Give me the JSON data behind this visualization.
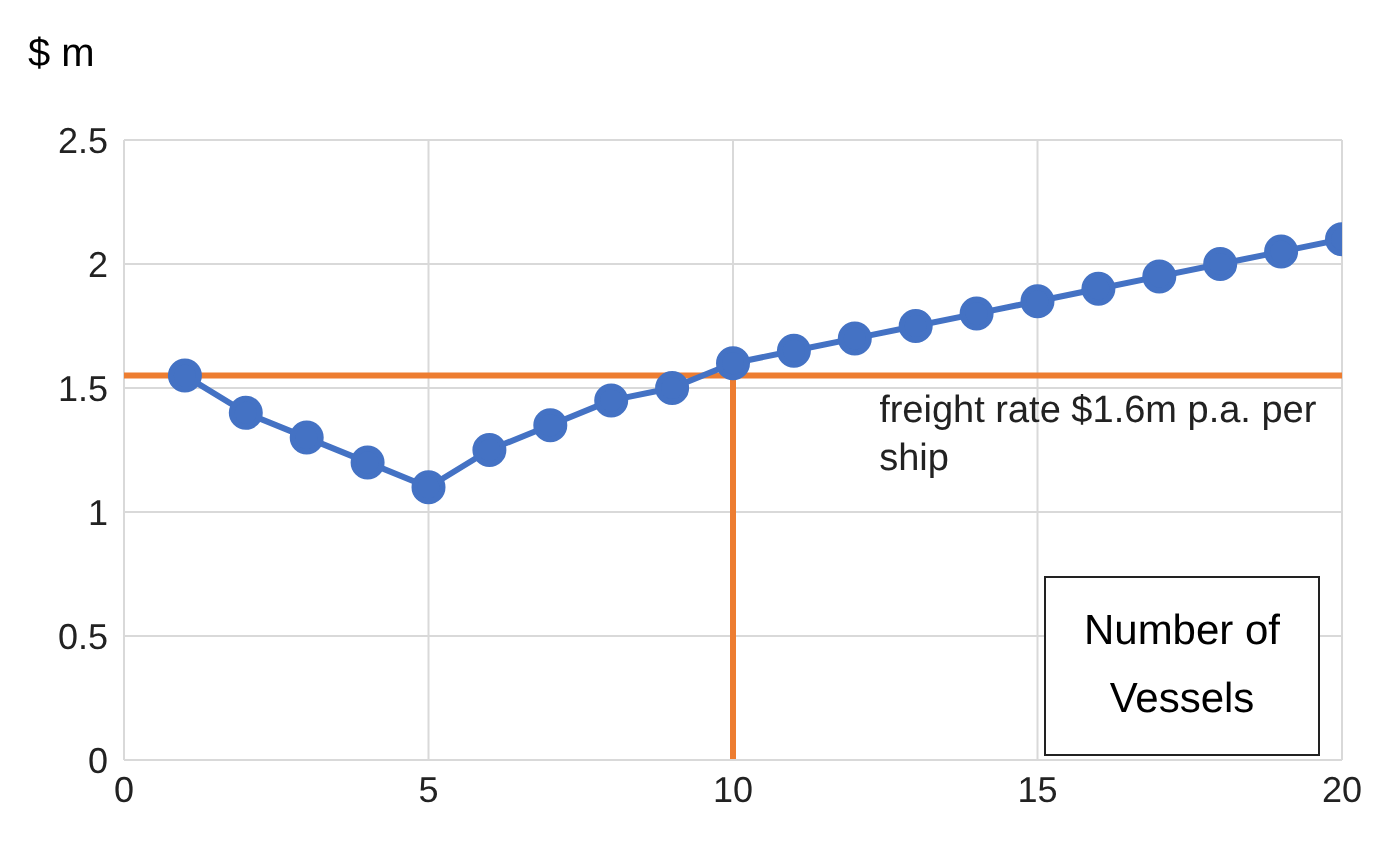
{
  "chart_data": {
    "type": "line",
    "xlabel": "Number of Vessels",
    "ylabel": "$ m",
    "x": [
      1,
      2,
      3,
      4,
      5,
      6,
      7,
      8,
      9,
      10,
      11,
      12,
      13,
      14,
      15,
      16,
      17,
      18,
      19,
      20
    ],
    "series": [
      {
        "color": "#4472c4",
        "values": [
          1.55,
          1.4,
          1.3,
          1.2,
          1.1,
          1.25,
          1.35,
          1.45,
          1.5,
          1.6,
          1.65,
          1.7,
          1.75,
          1.8,
          1.85,
          1.9,
          1.95,
          2.0,
          2.05,
          2.1
        ]
      }
    ],
    "xlim": [
      0,
      20
    ],
    "xticks": [
      0,
      5,
      10,
      15,
      20
    ],
    "ylim": [
      0,
      2.5
    ],
    "yticks": [
      0,
      0.5,
      1,
      1.5,
      2,
      2.5
    ],
    "ref_lines": [
      {
        "axis": "y",
        "value": 1.55,
        "label": "freight rate $1.6m p.a. per ship",
        "color": "#ed7d31"
      },
      {
        "axis": "x",
        "value": 10,
        "color": "#ed7d31"
      }
    ],
    "grid": true,
    "marker": "circle",
    "line_style": "solid"
  }
}
